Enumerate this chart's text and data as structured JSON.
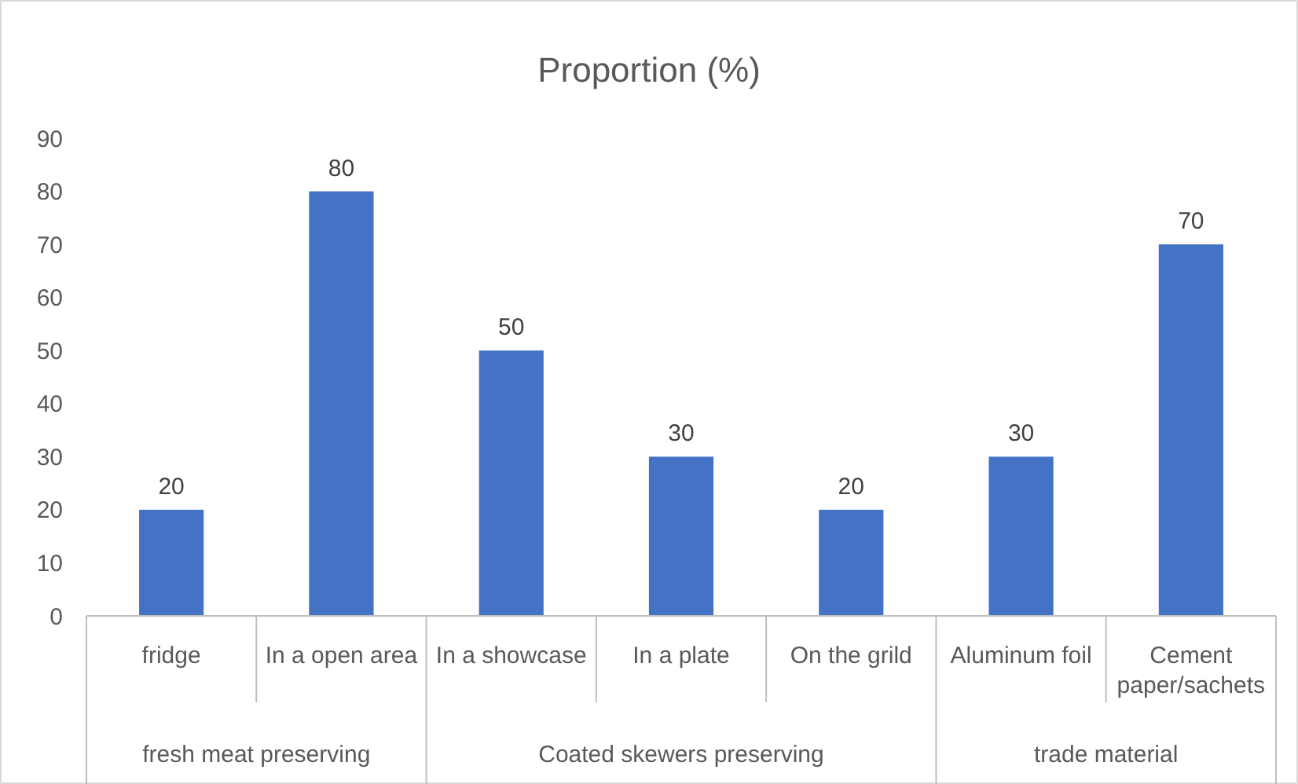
{
  "chart_data": {
    "type": "bar",
    "title": "Proportion (%)",
    "categories": [
      "fridge",
      "In a open area",
      "In a showcase",
      "In a plate",
      "On the grild",
      "Aluminum foil",
      "Cement paper/sachets"
    ],
    "values": [
      20,
      80,
      50,
      30,
      20,
      30,
      70
    ],
    "color": "#4472c4",
    "data_labels": true,
    "ylim": [
      0,
      90
    ],
    "yticks": [
      0,
      10,
      20,
      30,
      40,
      50,
      60,
      70,
      80,
      90
    ],
    "grid": false,
    "annotations": [
      "fresh meat preserving",
      "Coated skewers preserving",
      "trade material"
    ]
  }
}
